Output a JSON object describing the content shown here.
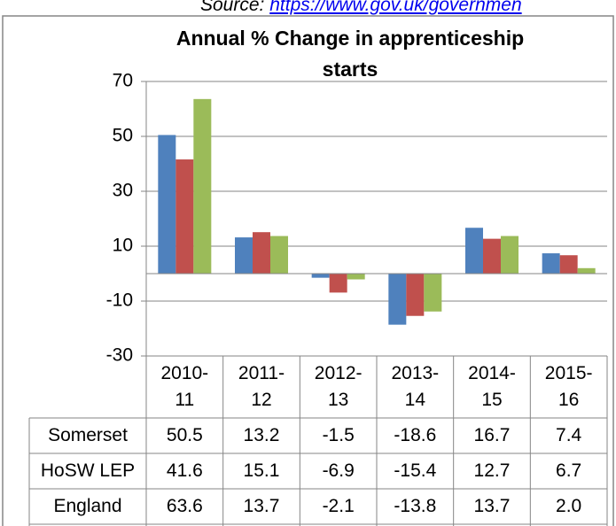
{
  "source": {
    "label": "Source:",
    "link": "https://www.gov.uk/governmen"
  },
  "chart_data": {
    "type": "bar",
    "title": "Annual % Change in apprenticeship starts",
    "categories": [
      "2010-11",
      "2011-12",
      "2012-13",
      "2013-14",
      "2014-15",
      "2015-16"
    ],
    "series": [
      {
        "name": "Somerset",
        "color": "#4f81bd",
        "values": [
          50.5,
          13.2,
          -1.5,
          -18.6,
          16.7,
          7.4
        ],
        "value_labels": [
          "50.5",
          "13.2",
          "-1.5",
          "-18.6",
          "16.7",
          "7.4"
        ]
      },
      {
        "name": "HoSW LEP",
        "color": "#c0504d",
        "values": [
          41.6,
          15.1,
          -6.9,
          -15.4,
          12.7,
          6.7
        ],
        "value_labels": [
          "41.6",
          "15.1",
          "-6.9",
          "-15.4",
          "12.7",
          "6.7"
        ]
      },
      {
        "name": "England",
        "color": "#9bbb59",
        "values": [
          63.6,
          13.7,
          -2.1,
          -13.8,
          13.7,
          2.0
        ],
        "value_labels": [
          "63.6",
          "13.7",
          "-2.1",
          "-13.8",
          "13.7",
          "2.0"
        ]
      }
    ],
    "ylim": [
      -30,
      70
    ],
    "yticks": [
      70,
      50,
      30,
      10,
      -10,
      -30
    ],
    "grid": true
  }
}
